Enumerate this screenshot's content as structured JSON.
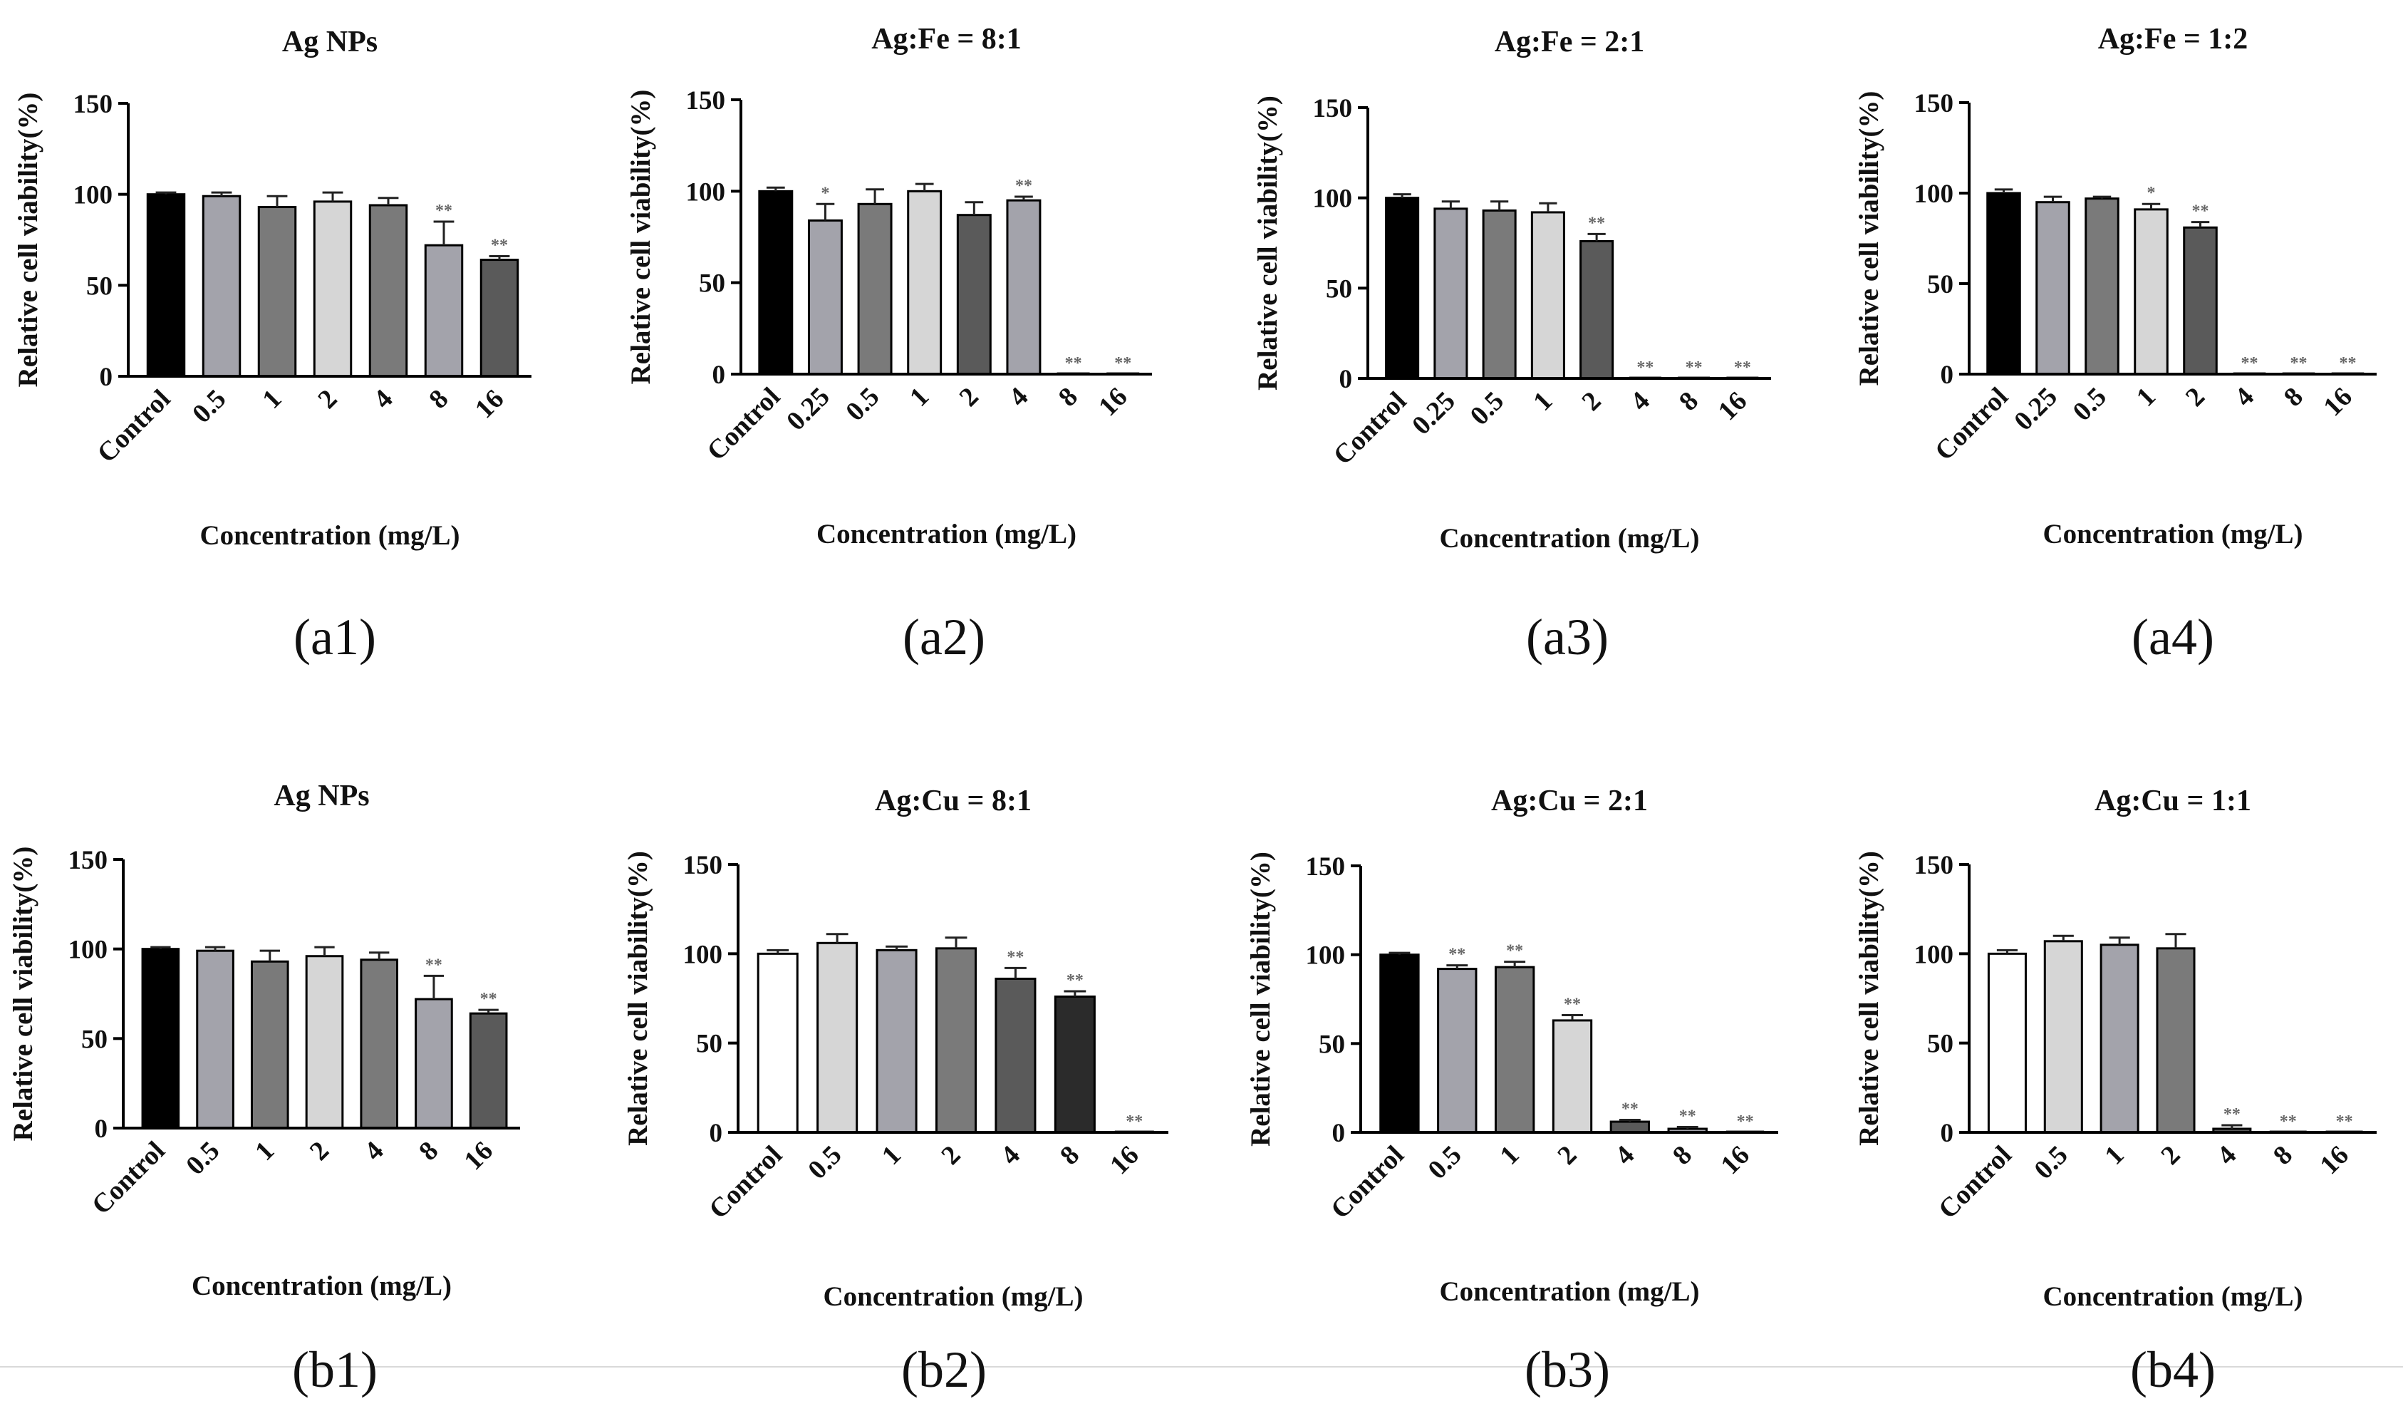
{
  "figure": {
    "panels": [
      {
        "id": "a1",
        "tag": "(a1)"
      },
      {
        "id": "a2",
        "tag": "(a2)"
      },
      {
        "id": "a3",
        "tag": "(a3)"
      },
      {
        "id": "a4",
        "tag": "(a4)"
      },
      {
        "id": "b1",
        "tag": "(b1)"
      },
      {
        "id": "b2",
        "tag": "(b2)"
      },
      {
        "id": "b3",
        "tag": "(b3)"
      },
      {
        "id": "b4",
        "tag": "(b4)"
      }
    ]
  },
  "colors": {
    "black": "#000000",
    "dark_gray": "#5a5a5a",
    "medium_gray": "#7a7a7a",
    "gray": "#a3a3ab",
    "light_gray": "#d6d6d6",
    "near_black": "#2b2b2b",
    "white": "#ffffff"
  },
  "chart_data": [
    {
      "type": "bar",
      "title": "Ag NPs",
      "xlabel": "Concentration (mg/L)",
      "ylabel": "Relative cell viability(%)",
      "ylim": [
        0,
        150
      ],
      "yticks": [
        0,
        50,
        100,
        150
      ],
      "categories": [
        "Control",
        "0.5",
        "1",
        "2",
        "4",
        "8",
        "16"
      ],
      "values": [
        100,
        99,
        93,
        96,
        94,
        72,
        64
      ],
      "errors": [
        1,
        2,
        6,
        5,
        4,
        13,
        2
      ],
      "significance": [
        "",
        "",
        "",
        "",
        "",
        "**",
        "**"
      ],
      "bar_colors": [
        "#000000",
        "#a3a3ab",
        "#7a7a7a",
        "#d6d6d6",
        "#7a7a7a",
        "#a3a3ab",
        "#5a5a5a"
      ]
    },
    {
      "type": "bar",
      "title": "Ag:Fe = 8:1",
      "xlabel": "Concentration (mg/L)",
      "ylabel": "Relative cell viability(%)",
      "ylim": [
        0,
        150
      ],
      "yticks": [
        0,
        50,
        100,
        150
      ],
      "categories": [
        "Control",
        "0.25",
        "0.5",
        "1",
        "2",
        "4",
        "8",
        "16"
      ],
      "values": [
        100,
        84,
        93,
        100,
        87,
        95,
        0,
        0
      ],
      "errors": [
        2,
        9,
        8,
        4,
        7,
        2,
        0,
        0
      ],
      "significance": [
        "",
        "*",
        "",
        "",
        "",
        "**",
        "**",
        "**"
      ],
      "bar_colors": [
        "#000000",
        "#a3a3ab",
        "#7a7a7a",
        "#d6d6d6",
        "#5a5a5a",
        "#a3a3ab",
        "#a3a3ab",
        "#5a5a5a"
      ]
    },
    {
      "type": "bar",
      "title": "Ag:Fe = 2:1",
      "xlabel": "Concentration (mg/L)",
      "ylabel": "Relative cell viability(%)",
      "ylim": [
        0,
        150
      ],
      "yticks": [
        0,
        50,
        100,
        150
      ],
      "categories": [
        "Control",
        "0.25",
        "0.5",
        "1",
        "2",
        "4",
        "8",
        "16"
      ],
      "values": [
        100,
        94,
        93,
        92,
        76,
        0,
        0,
        0
      ],
      "errors": [
        2,
        4,
        5,
        5,
        4,
        0,
        0,
        0
      ],
      "significance": [
        "",
        "",
        "",
        "",
        "**",
        "**",
        "**",
        "**"
      ],
      "bar_colors": [
        "#000000",
        "#a3a3ab",
        "#7a7a7a",
        "#d6d6d6",
        "#5a5a5a",
        "#a3a3ab",
        "#a3a3ab",
        "#5a5a5a"
      ]
    },
    {
      "type": "bar",
      "title": "Ag:Fe = 1:2",
      "xlabel": "Concentration (mg/L)",
      "ylabel": "Relative cell viability(%)",
      "ylim": [
        0,
        150
      ],
      "yticks": [
        0,
        50,
        100,
        150
      ],
      "categories": [
        "Control",
        "0.25",
        "0.5",
        "1",
        "2",
        "4",
        "8",
        "16"
      ],
      "values": [
        100,
        95,
        97,
        91,
        81,
        0,
        0,
        0
      ],
      "errors": [
        2,
        3,
        1,
        3,
        3,
        0,
        0,
        0
      ],
      "significance": [
        "",
        "",
        "",
        "*",
        "**",
        "**",
        "**",
        "**"
      ],
      "bar_colors": [
        "#000000",
        "#a3a3ab",
        "#7a7a7a",
        "#d6d6d6",
        "#5a5a5a",
        "#a3a3ab",
        "#a3a3ab",
        "#5a5a5a"
      ]
    },
    {
      "type": "bar",
      "title": "Ag NPs",
      "xlabel": "Concentration (mg/L)",
      "ylabel": "Relative cell viability(%)",
      "ylim": [
        0,
        150
      ],
      "yticks": [
        0,
        50,
        100,
        150
      ],
      "categories": [
        "Control",
        "0.5",
        "1",
        "2",
        "4",
        "8",
        "16"
      ],
      "values": [
        100,
        99,
        93,
        96,
        94,
        72,
        64
      ],
      "errors": [
        1,
        2,
        6,
        5,
        4,
        13,
        2
      ],
      "significance": [
        "",
        "",
        "",
        "",
        "",
        "**",
        "**"
      ],
      "bar_colors": [
        "#000000",
        "#a3a3ab",
        "#7a7a7a",
        "#d6d6d6",
        "#7a7a7a",
        "#a3a3ab",
        "#5a5a5a"
      ]
    },
    {
      "type": "bar",
      "title": "Ag:Cu = 8:1",
      "xlabel": "Concentration (mg/L)",
      "ylabel": "Relative cell viability(%)",
      "ylim": [
        0,
        150
      ],
      "yticks": [
        0,
        50,
        100,
        150
      ],
      "categories": [
        "Control",
        "0.5",
        "1",
        "2",
        "4",
        "8",
        "16"
      ],
      "values": [
        100,
        106,
        102,
        103,
        86,
        76,
        0
      ],
      "errors": [
        2,
        5,
        2,
        6,
        6,
        3,
        0
      ],
      "significance": [
        "",
        "",
        "",
        "",
        "**",
        "**",
        "**"
      ],
      "bar_colors": [
        "#ffffff",
        "#d6d6d6",
        "#a3a3ab",
        "#7a7a7a",
        "#5a5a5a",
        "#2b2b2b",
        "#000000"
      ]
    },
    {
      "type": "bar",
      "title": "Ag:Cu = 2:1",
      "xlabel": "Concentration (mg/L)",
      "ylabel": "Relative cell viability(%)",
      "ylim": [
        0,
        150
      ],
      "yticks": [
        0,
        50,
        100,
        150
      ],
      "categories": [
        "Control",
        "0.5",
        "1",
        "2",
        "4",
        "8",
        "16"
      ],
      "values": [
        100,
        92,
        93,
        63,
        6,
        2,
        0
      ],
      "errors": [
        1,
        2,
        3,
        3,
        1,
        1,
        0
      ],
      "significance": [
        "",
        "**",
        "**",
        "**",
        "**",
        "**",
        "**"
      ],
      "bar_colors": [
        "#000000",
        "#a3a3ab",
        "#7a7a7a",
        "#d6d6d6",
        "#5a5a5a",
        "#a3a3ab",
        "#5a5a5a"
      ]
    },
    {
      "type": "bar",
      "title": "Ag:Cu = 1:1",
      "xlabel": "Concentration (mg/L)",
      "ylabel": "Relative cell viability(%)",
      "ylim": [
        0,
        150
      ],
      "yticks": [
        0,
        50,
        100,
        150
      ],
      "categories": [
        "Control",
        "0.5",
        "1",
        "2",
        "4",
        "8",
        "16"
      ],
      "values": [
        100,
        107,
        105,
        103,
        2,
        0,
        0
      ],
      "errors": [
        2,
        3,
        4,
        8,
        2,
        0,
        0
      ],
      "significance": [
        "",
        "",
        "",
        "",
        "**",
        "**",
        "**"
      ],
      "bar_colors": [
        "#ffffff",
        "#d6d6d6",
        "#a3a3ab",
        "#7a7a7a",
        "#5a5a5a",
        "#2b2b2b",
        "#000000"
      ]
    }
  ]
}
